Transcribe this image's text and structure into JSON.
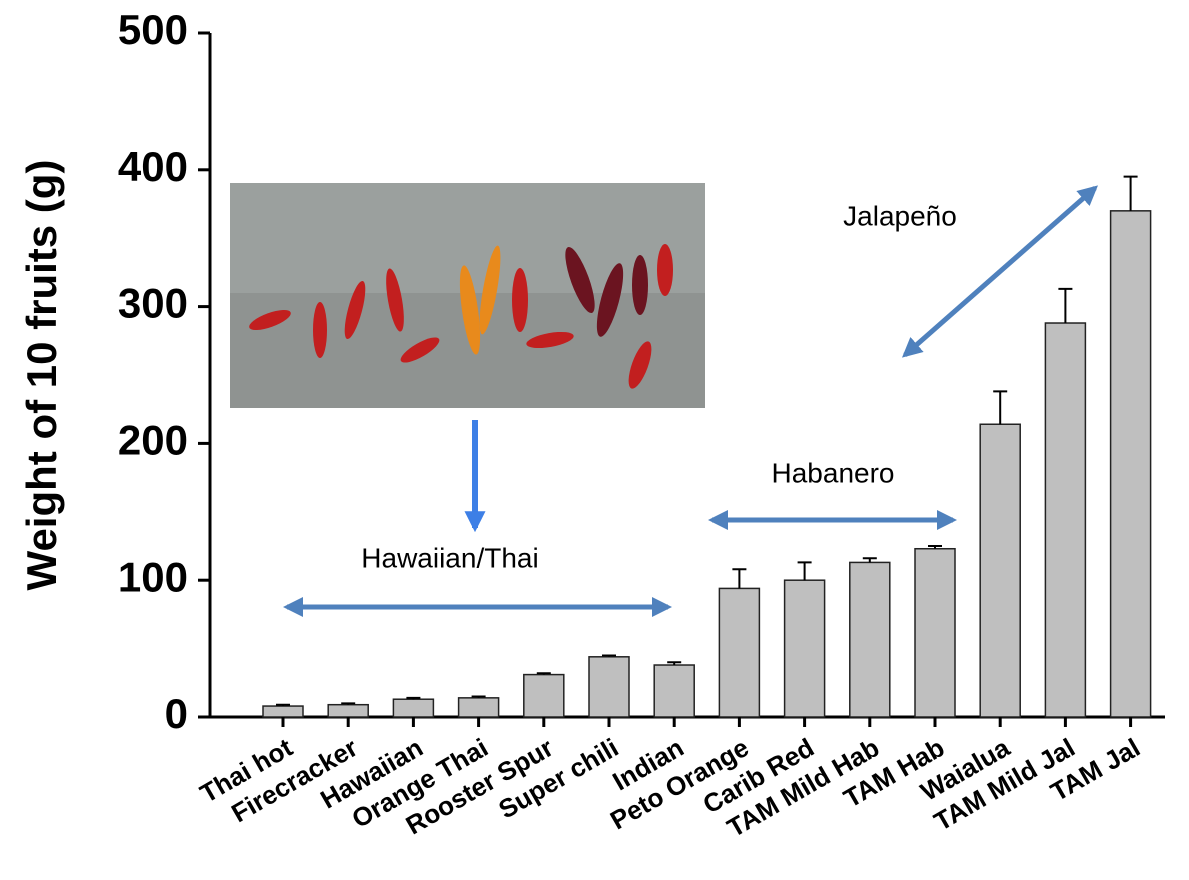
{
  "chart_data": {
    "type": "bar",
    "y_label": "Weight of 10 fruits (g)",
    "categories": [
      "Thai hot",
      "Firecracker",
      "Hawaiian",
      "Orange Thai",
      "Rooster Spur",
      "Super chili",
      "Indian",
      "Peto Orange",
      "Carib Red",
      "TAM Mild Hab",
      "TAM Hab",
      "Waialua",
      "TAM Mild Jal",
      "TAM Jal"
    ],
    "values": [
      8,
      9,
      13,
      14,
      31,
      44,
      38,
      94,
      100,
      113,
      123,
      214,
      288,
      370
    ],
    "errors": [
      1,
      1,
      1,
      1,
      1,
      1,
      2,
      14,
      13,
      3,
      2,
      24,
      25,
      25
    ],
    "color": "#bfbfbf",
    "ylim": [
      0,
      500
    ],
    "yticks": [
      0,
      100,
      200,
      300,
      400,
      500
    ],
    "annotations": [
      "Jalapeño",
      "Habanero",
      "Hawaiian/Thai"
    ]
  }
}
